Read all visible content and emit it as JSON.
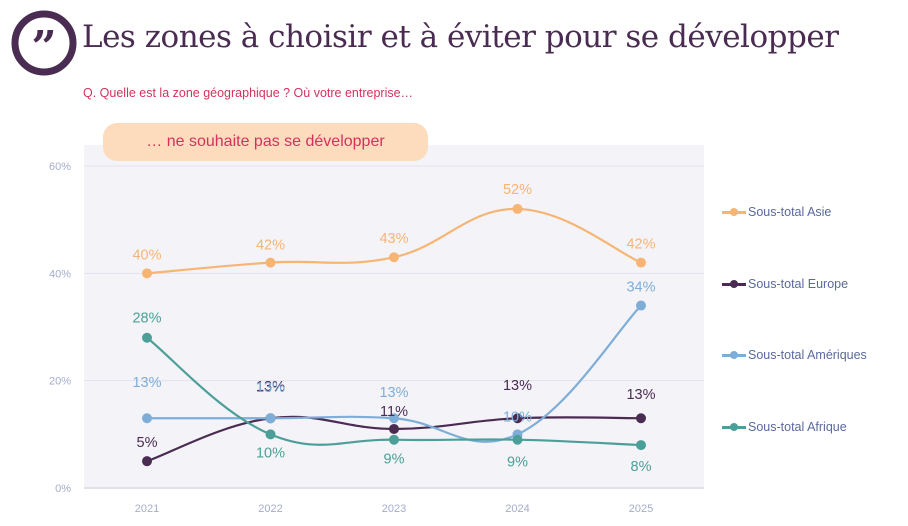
{
  "header": {
    "title": "Les zones à choisir et à éviter pour se développer",
    "question": "Q. Quelle est la zone géographique ? Où votre entreprise…",
    "logo_icon": "quote-icon"
  },
  "colors": {
    "brand": "#4a2c52",
    "accent": "#d6315e",
    "pill": "#fcdcbd",
    "plot_bg": "#f4f3f8",
    "axis_text": "#a5acc9",
    "legend_text": "#5a6a9c"
  },
  "chart_data": {
    "type": "line",
    "title": "… ne souhaite pas se développer",
    "xlabel": "",
    "ylabel": "",
    "categories": [
      "2021",
      "2022",
      "2023",
      "2024",
      "2025"
    ],
    "ylim": [
      0,
      60
    ],
    "yticks": [
      0,
      20,
      40,
      60
    ],
    "ytick_labels": [
      "0%",
      "20%",
      "40%",
      "60%"
    ],
    "grid": true,
    "legend_position": "right",
    "smooth": true,
    "series": [
      {
        "name": "Sous-total Asie",
        "color": "#f7b574",
        "values": [
          40,
          42,
          43,
          52,
          42
        ],
        "labels": [
          "40%",
          "42%",
          "43%",
          "52%",
          "42%"
        ]
      },
      {
        "name": "Sous-total Europe",
        "color": "#4a2c52",
        "values": [
          5,
          13,
          11,
          13,
          13
        ],
        "labels": [
          "5%",
          "13%",
          "11%",
          "13%",
          "13%"
        ]
      },
      {
        "name": "Sous-total Amériques",
        "color": "#7eaed8",
        "values": [
          13,
          13,
          13,
          10,
          34
        ],
        "labels": [
          "13%",
          "13%",
          "13%",
          "10%",
          "34%"
        ]
      },
      {
        "name": "Sous-total Afrique",
        "color": "#4c9f98",
        "values": [
          28,
          10,
          9,
          9,
          8
        ],
        "labels": [
          "28%",
          "10%",
          "9%",
          "9%",
          "8%"
        ]
      }
    ]
  }
}
